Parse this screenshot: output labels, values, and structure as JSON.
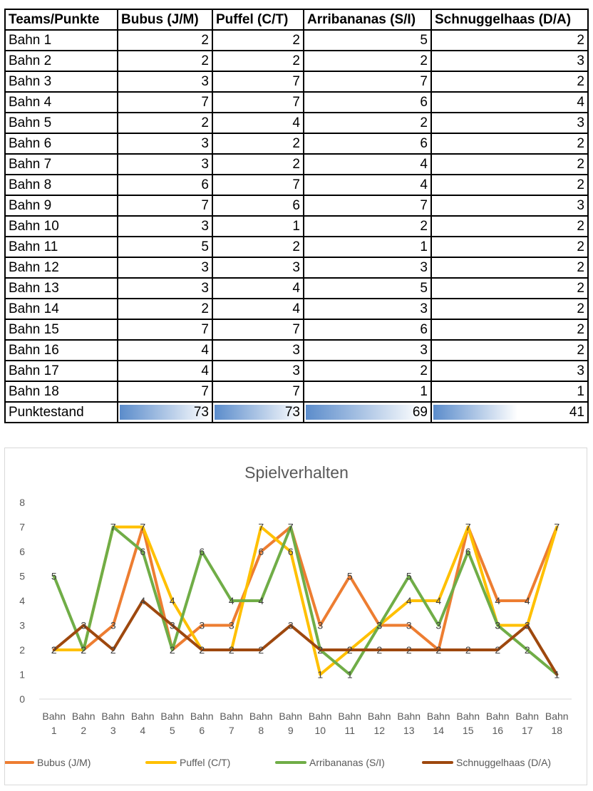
{
  "table": {
    "headers": [
      "Teams/Punkte",
      "Bubus (J/M)",
      "Puffel (C/T)",
      "Arribananas (S/I)",
      "Schnuggelhaas (D/A)"
    ],
    "rows": [
      {
        "label": "Bahn 1",
        "values": [
          2,
          2,
          5,
          2
        ]
      },
      {
        "label": "Bahn 2",
        "values": [
          2,
          2,
          2,
          3
        ]
      },
      {
        "label": "Bahn 3",
        "values": [
          3,
          7,
          7,
          2
        ]
      },
      {
        "label": "Bahn 4",
        "values": [
          7,
          7,
          6,
          4
        ]
      },
      {
        "label": "Bahn 5",
        "values": [
          2,
          4,
          2,
          3
        ]
      },
      {
        "label": "Bahn 6",
        "values": [
          3,
          2,
          6,
          2
        ]
      },
      {
        "label": "Bahn 7",
        "values": [
          3,
          2,
          4,
          2
        ]
      },
      {
        "label": "Bahn 8",
        "values": [
          6,
          7,
          4,
          2
        ]
      },
      {
        "label": "Bahn 9",
        "values": [
          7,
          6,
          7,
          3
        ]
      },
      {
        "label": "Bahn 10",
        "values": [
          3,
          1,
          2,
          2
        ]
      },
      {
        "label": "Bahn 11",
        "values": [
          5,
          2,
          1,
          2
        ]
      },
      {
        "label": "Bahn 12",
        "values": [
          3,
          3,
          3,
          2
        ]
      },
      {
        "label": "Bahn 13",
        "values": [
          3,
          4,
          5,
          2
        ]
      },
      {
        "label": "Bahn 14",
        "values": [
          2,
          4,
          3,
          2
        ]
      },
      {
        "label": "Bahn 15",
        "values": [
          7,
          7,
          6,
          2
        ]
      },
      {
        "label": "Bahn 16",
        "values": [
          4,
          3,
          3,
          2
        ]
      },
      {
        "label": "Bahn 17",
        "values": [
          4,
          3,
          2,
          3
        ]
      },
      {
        "label": "Bahn 18",
        "values": [
          7,
          7,
          1,
          1
        ]
      }
    ],
    "total": {
      "label": "Punktestand",
      "values": [
        73,
        73,
        69,
        41
      ],
      "bar_max": 73
    }
  },
  "chart_data": {
    "type": "line",
    "title": "Spielverhalten",
    "categories": [
      "Bahn 1",
      "Bahn 2",
      "Bahn 3",
      "Bahn 4",
      "Bahn 5",
      "Bahn 6",
      "Bahn 7",
      "Bahn 8",
      "Bahn 9",
      "Bahn 10",
      "Bahn 11",
      "Bahn 12",
      "Bahn 13",
      "Bahn 14",
      "Bahn 15",
      "Bahn 16",
      "Bahn 17",
      "Bahn 18"
    ],
    "ylim": [
      0,
      8
    ],
    "yticks": [
      0,
      1,
      2,
      3,
      4,
      5,
      6,
      7,
      8
    ],
    "grid": false,
    "legend": "bottom",
    "data_labels": true,
    "series": [
      {
        "name": "Bubus (J/M)",
        "color": "#ed7d31",
        "values": [
          2,
          2,
          3,
          7,
          2,
          3,
          3,
          6,
          7,
          3,
          5,
          3,
          3,
          2,
          7,
          4,
          4,
          7
        ]
      },
      {
        "name": "Puffel (C/T)",
        "color": "#ffc000",
        "values": [
          2,
          2,
          7,
          7,
          4,
          2,
          2,
          7,
          6,
          1,
          2,
          3,
          4,
          4,
          7,
          3,
          3,
          7
        ]
      },
      {
        "name": "Arribananas (S/I)",
        "color": "#70ad47",
        "values": [
          5,
          2,
          7,
          6,
          2,
          6,
          4,
          4,
          7,
          2,
          1,
          3,
          5,
          3,
          6,
          3,
          2,
          1
        ]
      },
      {
        "name": "Schnuggelhaas (D/A)",
        "color": "#9e480e",
        "values": [
          2,
          3,
          2,
          4,
          3,
          2,
          2,
          2,
          3,
          2,
          2,
          2,
          2,
          2,
          2,
          2,
          3,
          1
        ]
      }
    ],
    "axis_color": "#d9d9d9",
    "text_color": "#595959",
    "label_color": "#404040"
  }
}
